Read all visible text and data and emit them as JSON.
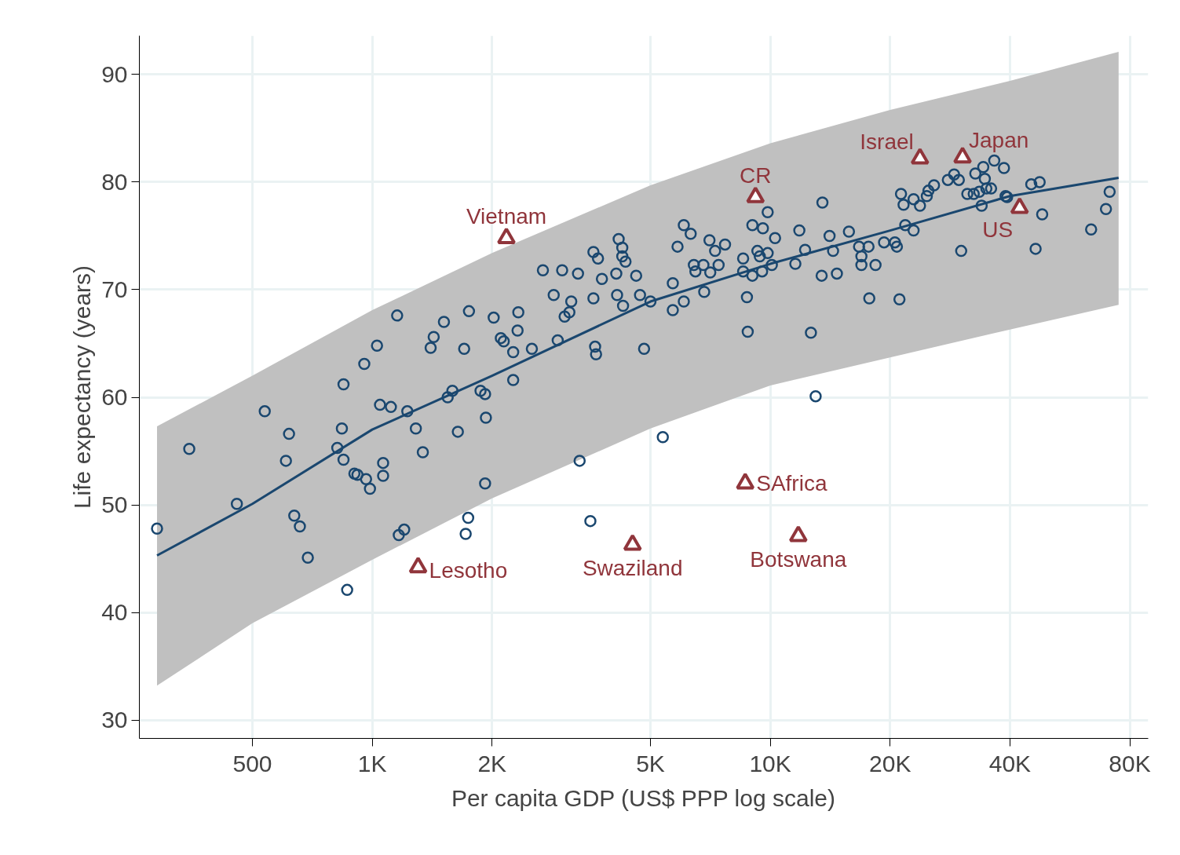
{
  "chart_data": {
    "type": "scatter",
    "xlabel": "Per capita GDP (US$ PPP log scale)",
    "ylabel": "Life expectancy (years)",
    "log": "x",
    "grid": true,
    "xlim": [
      260,
      89000
    ],
    "ylim": [
      28.3,
      93.6
    ],
    "xticks": [
      500,
      {
        "value": 1000,
        "label": "1K"
      },
      {
        "value": 2000,
        "label": "2K"
      },
      {
        "value": 5000,
        "label": "5K"
      },
      {
        "value": 10000,
        "label": "10K"
      },
      {
        "value": 20000,
        "label": "20K"
      },
      {
        "value": 40000,
        "label": "40K"
      },
      {
        "value": 80000,
        "label": "80K"
      }
    ],
    "yticks": [
      30,
      40,
      50,
      60,
      70,
      80,
      90
    ],
    "series": [
      {
        "type": "line",
        "color": "#1a476f",
        "marker": "none",
        "line_style": "solid",
        "x": [
          288,
          500,
          1000,
          2000,
          5000,
          10000,
          20000,
          40000,
          75000
        ],
        "values": [
          45.3,
          50.1,
          57.0,
          62.0,
          68.9,
          72.4,
          75.5,
          78.7,
          80.4
        ],
        "lower": [
          33.2,
          39.0,
          44.9,
          50.6,
          57.1,
          61.1,
          63.7,
          66.3,
          68.6
        ],
        "upper": [
          57.3,
          62.0,
          68.1,
          73.4,
          79.7,
          83.6,
          86.7,
          89.4,
          92.1
        ]
      },
      {
        "color": "#1a476f",
        "marker": "circle",
        "x": [
          288,
          347,
          457,
          537,
          607,
          618,
          637,
          658,
          689,
          817,
          839,
          847,
          847,
          865,
          902,
          918,
          955,
          965,
          987,
          1028,
          1046,
          1065,
          1065,
          1114,
          1155,
          1166,
          1203,
          1225,
          1287,
          1340,
          1402,
          1427,
          1514,
          1547,
          1590,
          1641,
          1702,
          1717,
          1742,
          1750,
          1871,
          1921,
          1930,
          1921,
          2019,
          2104,
          2140,
          2260,
          2260,
          2318,
          2328,
          2518,
          2684,
          2857,
          2924,
          3000,
          3043,
          3128,
          3162,
          3288,
          3319,
          3595,
          3595,
          3630,
          3650,
          3532,
          3691,
          3776,
          4103,
          4122,
          4160,
          4248,
          4248,
          4328,
          4267,
          4603,
          4707,
          4819,
          5000,
          5370,
          5690,
          5690,
          5848,
          6064,
          6064,
          6310,
          6427,
          6485,
          6823,
          6792,
          7035,
          7067,
          7266,
          7416,
          7697,
          8547,
          8547,
          8737,
          8777,
          9016,
          9016,
          9281,
          9410,
          9537,
          9581,
          9850,
          9850,
          10090,
          10280,
          11560,
          11830,
          12230,
          12650,
          13000,
          13520,
          13460,
          14090,
          14380,
          14700,
          15760,
          16710,
          16940,
          16940,
          17650,
          17730,
          18380,
          19310,
          20560,
          20800,
          21110,
          21300,
          21620,
          21830,
          22910,
          22910,
          23770,
          24730,
          24960,
          25780,
          27930,
          28960,
          29760,
          30170,
          31260,
          32440,
          32740,
          33500,
          33960,
          34280,
          34590,
          34900,
          35870,
          36530,
          38640,
          39000,
          39350,
          45250,
          47500,
          46400,
          48200,
          63970,
          69700,
          71200
        ],
        "values": [
          47.8,
          55.2,
          50.1,
          58.7,
          54.1,
          56.6,
          49.0,
          48.0,
          45.1,
          55.3,
          57.1,
          61.2,
          54.2,
          42.1,
          52.9,
          52.8,
          63.1,
          52.4,
          51.5,
          64.8,
          59.3,
          53.9,
          52.7,
          59.1,
          67.6,
          47.2,
          47.7,
          58.7,
          57.1,
          54.9,
          64.6,
          65.6,
          67.0,
          60.0,
          60.6,
          56.8,
          64.5,
          47.3,
          48.8,
          68.0,
          60.6,
          60.3,
          58.1,
          52.0,
          67.4,
          65.5,
          65.2,
          61.6,
          64.2,
          66.2,
          67.9,
          64.5,
          71.8,
          69.5,
          65.3,
          71.8,
          67.5,
          67.9,
          68.9,
          71.5,
          54.1,
          73.5,
          69.2,
          64.7,
          64.0,
          48.5,
          72.9,
          71.0,
          71.5,
          69.5,
          74.7,
          73.9,
          73.1,
          72.6,
          68.5,
          71.3,
          69.5,
          64.5,
          68.9,
          56.3,
          70.6,
          68.1,
          74.0,
          76.0,
          68.9,
          75.2,
          72.3,
          71.7,
          69.8,
          72.3,
          74.6,
          71.6,
          73.6,
          72.3,
          74.2,
          72.9,
          71.7,
          69.3,
          66.1,
          76.0,
          71.3,
          73.6,
          73.1,
          71.7,
          75.7,
          77.2,
          73.4,
          72.3,
          74.8,
          72.4,
          75.5,
          73.7,
          66.0,
          60.1,
          78.1,
          71.3,
          75.0,
          73.6,
          71.5,
          75.4,
          74.0,
          73.1,
          72.3,
          74.0,
          69.2,
          72.3,
          74.4,
          74.4,
          74.0,
          69.1,
          78.9,
          77.9,
          76.0,
          75.5,
          78.4,
          77.8,
          78.7,
          79.2,
          79.7,
          80.2,
          80.7,
          80.2,
          73.6,
          78.9,
          78.9,
          80.8,
          79.1,
          77.8,
          81.4,
          80.3,
          79.4,
          79.4,
          82.0,
          81.3,
          78.7,
          78.6,
          79.8,
          80.0,
          73.8,
          77.0,
          75.6,
          77.5,
          79.1
        ]
      },
      {
        "color": "#90353b",
        "marker": "triangle",
        "x": [
          2173,
          9180,
          23770,
          30410,
          42300,
          8650,
          11760,
          4508,
          1304
        ],
        "values": [
          74.8,
          78.6,
          82.2,
          82.3,
          77.6,
          52.0,
          47.1,
          46.3,
          44.2
        ]
      }
    ],
    "annotations": [
      {
        "text": "Vietnam",
        "x": 2173,
        "y": 74.8
      },
      {
        "text": "CR",
        "x": 9180,
        "y": 78.6
      },
      {
        "text": "Israel",
        "x": 23770,
        "y": 82.2
      },
      {
        "text": "Japan",
        "x": 30410,
        "y": 82.3
      },
      {
        "text": "US",
        "x": 42300,
        "y": 77.6
      },
      {
        "text": "SAfrica",
        "x": 8650,
        "y": 52.0
      },
      {
        "text": "Botswana",
        "x": 11760,
        "y": 47.1
      },
      {
        "text": "Swaziland",
        "x": 4508,
        "y": 46.3
      },
      {
        "text": "Lesotho",
        "x": 1304,
        "y": 44.2
      }
    ]
  }
}
